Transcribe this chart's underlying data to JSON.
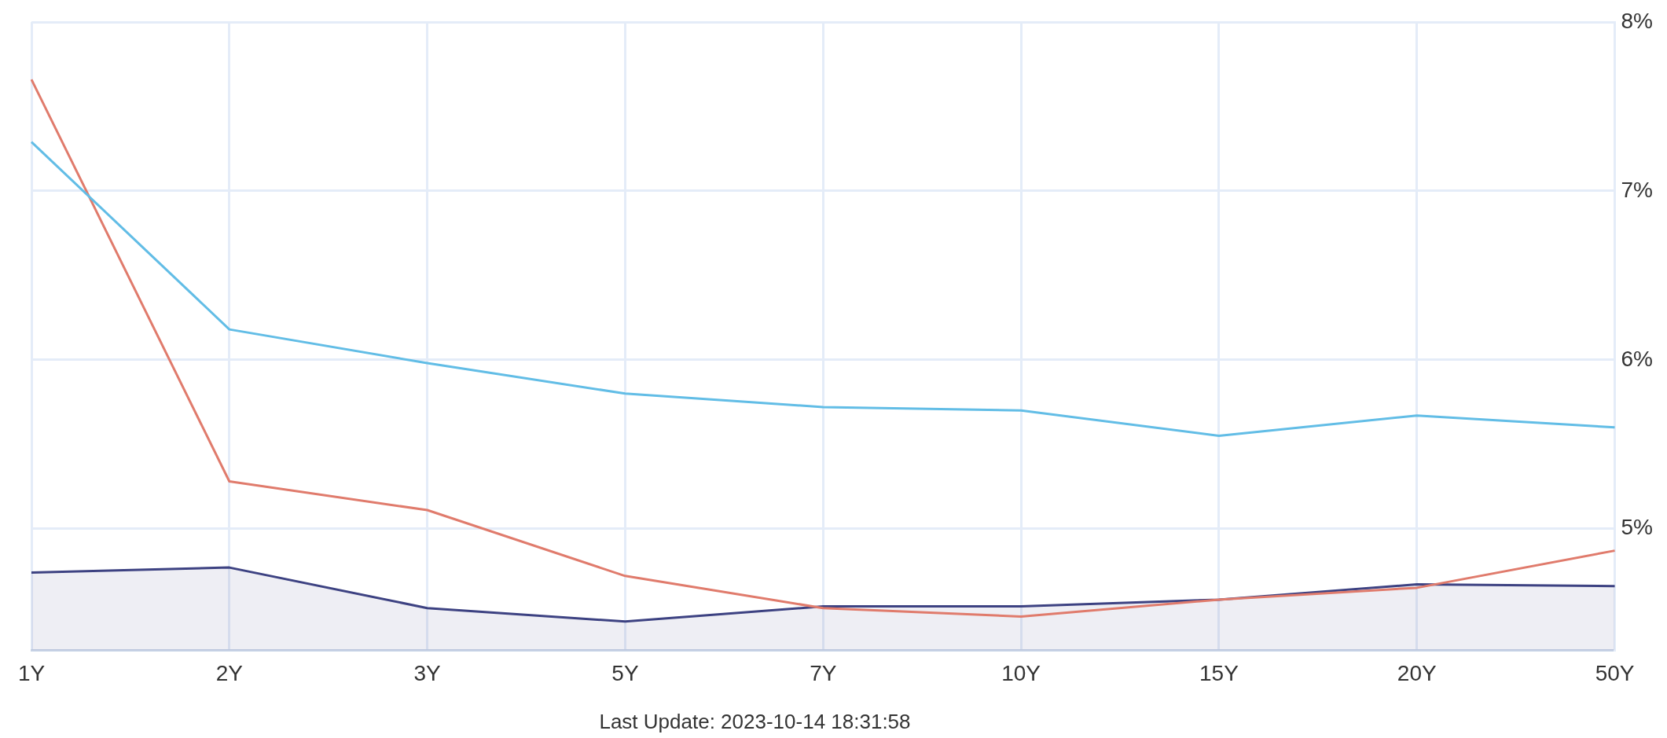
{
  "chart_data": {
    "type": "line",
    "categories": [
      "1Y",
      "2Y",
      "3Y",
      "5Y",
      "7Y",
      "10Y",
      "15Y",
      "20Y",
      "50Y"
    ],
    "series": [
      {
        "color": "#62bde6",
        "values": [
          7.29,
          6.18,
          5.98,
          5.8,
          5.72,
          5.7,
          5.55,
          5.67,
          5.6
        ]
      },
      {
        "color": "#e07b6c",
        "values": [
          7.66,
          5.28,
          5.11,
          4.72,
          4.53,
          4.48,
          4.58,
          4.65,
          4.87
        ]
      },
      {
        "type": "area",
        "color": "#3d4282",
        "values": [
          4.74,
          4.77,
          4.53,
          4.45,
          4.54,
          4.54,
          4.58,
          4.67,
          4.66
        ]
      }
    ],
    "ylim": [
      4.28,
      8
    ],
    "yticks": [
      {
        "value": 5,
        "label": "5%"
      },
      {
        "value": 6,
        "label": "6%"
      },
      {
        "value": 7,
        "label": "7%"
      },
      {
        "value": 8,
        "label": "8%"
      }
    ],
    "grid": true,
    "legend": false,
    "marker": "none",
    "line_style": "solid",
    "annotations": [
      "Last Update: 2023-10-14 18:31:58"
    ]
  }
}
